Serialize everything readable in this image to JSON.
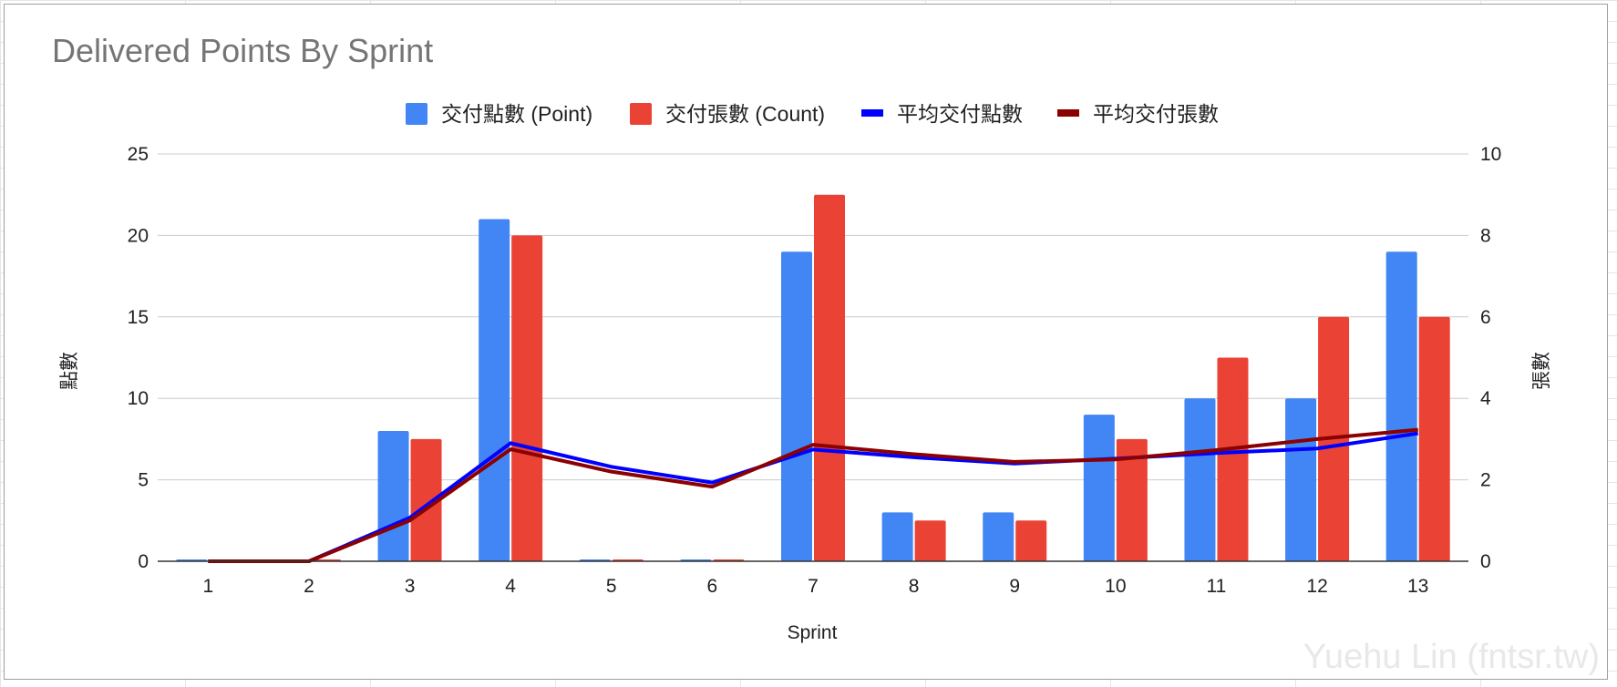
{
  "chart_data": {
    "type": "bar",
    "title": "Delivered Points By Sprint",
    "xlabel": "Sprint",
    "ylabel_left": "點數",
    "ylabel_right": "張數",
    "categories": [
      "1",
      "2",
      "3",
      "4",
      "5",
      "6",
      "7",
      "8",
      "9",
      "10",
      "11",
      "12",
      "13"
    ],
    "y_left": {
      "range": [
        0,
        25
      ],
      "ticks": [
        0,
        5,
        10,
        15,
        20,
        25
      ],
      "color": "#0000ff"
    },
    "y_right": {
      "range": [
        0,
        10
      ],
      "ticks": [
        0,
        2,
        4,
        6,
        8,
        10
      ],
      "color": "#8b0000"
    },
    "grid": true,
    "legend_position": "top",
    "series": [
      {
        "name": "交付點數 (Point)",
        "kind": "bar",
        "axis": "left",
        "color": "#4285f4",
        "values": [
          0,
          0,
          8,
          21,
          0,
          0,
          19,
          3,
          3,
          9,
          10,
          10,
          19
        ]
      },
      {
        "name": "交付張數 (Count)",
        "kind": "bar",
        "axis": "right",
        "color": "#ea4335",
        "values": [
          0,
          0,
          3,
          8,
          0,
          0,
          9,
          1,
          1,
          3,
          5,
          6,
          6
        ]
      },
      {
        "name": "平均交付點數",
        "kind": "line",
        "axis": "left",
        "color": "#0000ff",
        "values": [
          0,
          0,
          2.67,
          7.25,
          5.8,
          4.83,
          6.86,
          6.38,
          6.0,
          6.3,
          6.64,
          6.92,
          7.85
        ]
      },
      {
        "name": "平均交付張數",
        "kind": "line",
        "axis": "right",
        "color": "#8b0000",
        "values": [
          0,
          0,
          1.0,
          2.75,
          2.2,
          1.83,
          2.86,
          2.63,
          2.44,
          2.5,
          2.73,
          3.0,
          3.23
        ]
      }
    ]
  },
  "watermark": "Yuehu Lin (fntsr.tw)"
}
